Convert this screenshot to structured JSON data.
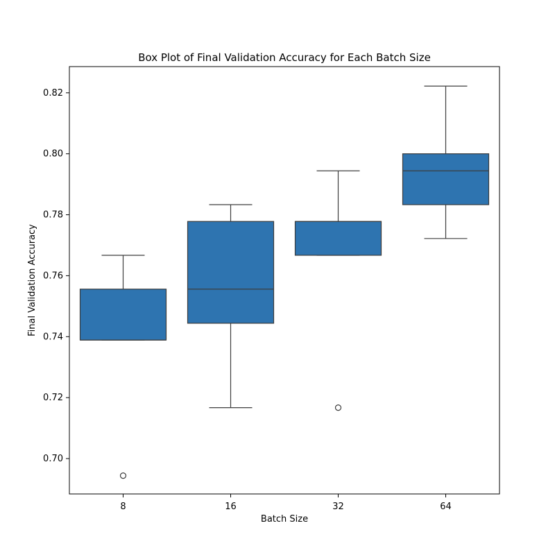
{
  "chart_data": {
    "type": "box",
    "title": "Box Plot of Final Validation Accuracy for Each Batch Size",
    "xlabel": "Batch Size",
    "ylabel": "Final Validation Accuracy",
    "categories": [
      "8",
      "16",
      "32",
      "64"
    ],
    "ylim": [
      0.6884,
      0.8286
    ],
    "yticks": [
      "0.70",
      "0.72",
      "0.74",
      "0.76",
      "0.78",
      "0.80",
      "0.82"
    ],
    "box_color": "#2e74b0",
    "line_color": "#3c3c3c",
    "boxes": [
      {
        "category": "8",
        "whisker_low": 0.7389,
        "q1": 0.7389,
        "median": 0.7389,
        "q3": 0.7556,
        "whisker_high": 0.7667,
        "outliers": [
          0.6944
        ]
      },
      {
        "category": "16",
        "whisker_low": 0.7167,
        "q1": 0.7444,
        "median": 0.7556,
        "q3": 0.7778,
        "whisker_high": 0.7833,
        "outliers": []
      },
      {
        "category": "32",
        "whisker_low": 0.7667,
        "q1": 0.7667,
        "median": 0.7778,
        "q3": 0.7778,
        "whisker_high": 0.7944,
        "outliers": [
          0.7167
        ]
      },
      {
        "category": "64",
        "whisker_low": 0.7722,
        "q1": 0.7833,
        "median": 0.7944,
        "q3": 0.8,
        "whisker_high": 0.8222,
        "outliers": []
      }
    ]
  }
}
